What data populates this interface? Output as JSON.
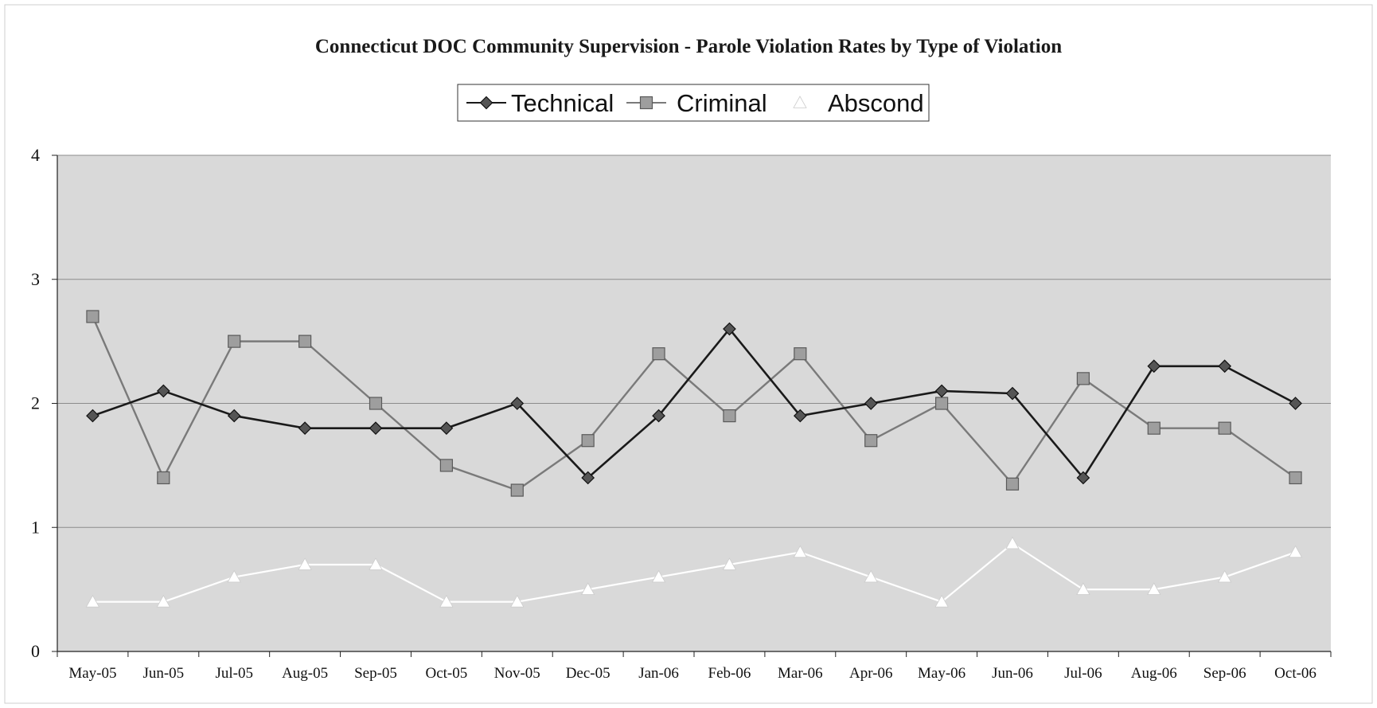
{
  "chart_data": {
    "type": "line",
    "title": "Connecticut DOC Community Supervision -  Parole Violation Rates by Type of Violation",
    "xlabel": "",
    "ylabel": "",
    "categories": [
      "May-05",
      "Jun-05",
      "Jul-05",
      "Aug-05",
      "Sep-05",
      "Oct-05",
      "Nov-05",
      "Dec-05",
      "Jan-06",
      "Feb-06",
      "Mar-06",
      "Apr-06",
      "May-06",
      "Jun-06",
      "Jul-06",
      "Aug-06",
      "Sep-06",
      "Oct-06"
    ],
    "ylim": [
      0,
      4
    ],
    "yticks": [
      0,
      1,
      2,
      3,
      4
    ],
    "grid": "horizontal",
    "legend_position": "top-center",
    "series": [
      {
        "name": "Technical",
        "color": "#1a1a1a",
        "marker": "diamond",
        "values": [
          1.9,
          2.1,
          1.9,
          1.8,
          1.8,
          1.8,
          2.0,
          1.4,
          1.9,
          2.6,
          1.9,
          2.0,
          2.1,
          2.08,
          1.4,
          2.3,
          2.3,
          2.0
        ]
      },
      {
        "name": "Criminal",
        "color": "#777777",
        "marker": "square",
        "values": [
          2.7,
          1.4,
          2.5,
          2.5,
          2.0,
          1.5,
          1.3,
          1.7,
          2.4,
          1.9,
          2.4,
          1.7,
          2.0,
          1.35,
          2.2,
          1.8,
          1.8,
          1.4
        ]
      },
      {
        "name": "Abscond",
        "color": "#ffffff",
        "marker": "triangle",
        "values": [
          0.4,
          0.4,
          0.6,
          0.7,
          0.7,
          0.4,
          0.4,
          0.5,
          0.6,
          0.7,
          0.8,
          0.6,
          0.4,
          0.87,
          0.5,
          0.5,
          0.6,
          0.8
        ]
      }
    ]
  }
}
